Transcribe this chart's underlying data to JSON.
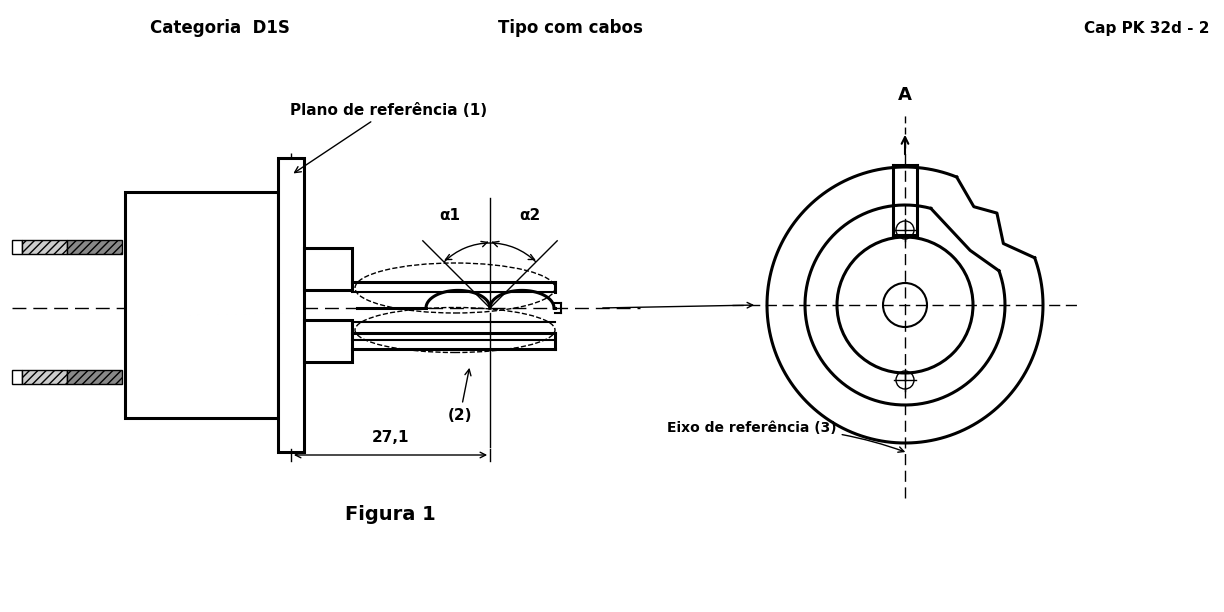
{
  "title_left": "Categoria  D1S",
  "title_center": "Tipo com cabos",
  "title_right": "Cap PK 32d - 2",
  "label_ref_plane": "Plano de referência (1)",
  "label_2": "(2)",
  "label_dim": "27,1",
  "label_axis": "Eixo de referência (3)",
  "label_A": "A",
  "label_alpha1": "α1",
  "label_alpha2": "α2",
  "figure_label": "Figura 1",
  "bg_color": "#ffffff",
  "line_color": "#000000"
}
